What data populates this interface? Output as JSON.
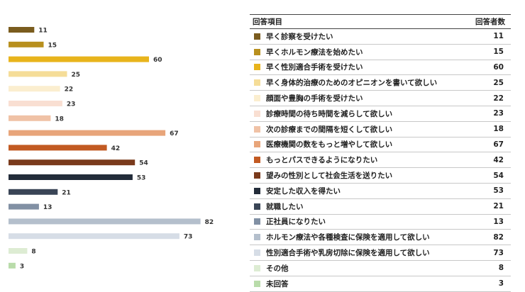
{
  "chart_data": {
    "type": "bar",
    "orientation": "horizontal",
    "xlim": [
      0,
      90
    ],
    "table_headers": {
      "item": "回答項目",
      "count": "回答者数"
    },
    "categories": [
      "早く診察を受けたい",
      "早くホルモン療法を始めたい",
      "早く性別適合手術を受けたい",
      "早く身体的治療のためのオピニオンを書いて欲しい",
      "顔面や豊胸の手術を受けたい",
      "診療時間の待ち時間を減らして欲しい",
      "次の診療までの間隔を短くして欲しい",
      "医療機関の数をもっと増やして欲しい",
      "もっとパスできるようになりたい",
      "望みの性別として社会生活を送りたい",
      "安定した収入を得たい",
      "就職したい",
      "正社員になりたい",
      "ホルモン療法や各種検査に保険を適用して欲しい",
      "性別適合手術や乳房切除に保険を適用して欲しい",
      "その他",
      "未回答"
    ],
    "values": [
      11,
      15,
      60,
      25,
      22,
      23,
      18,
      67,
      42,
      54,
      53,
      21,
      13,
      82,
      73,
      8,
      3
    ],
    "colors": [
      "#7a5c1e",
      "#b8901e",
      "#e8b41c",
      "#f5dd98",
      "#fbeecf",
      "#f9dfd2",
      "#f0c2a6",
      "#e8a57a",
      "#c25a22",
      "#7a3a1c",
      "#232c3a",
      "#3a4556",
      "#8190a4",
      "#b4bfcc",
      "#d6dde6",
      "#ddecd3",
      "#b9dcaa"
    ]
  }
}
